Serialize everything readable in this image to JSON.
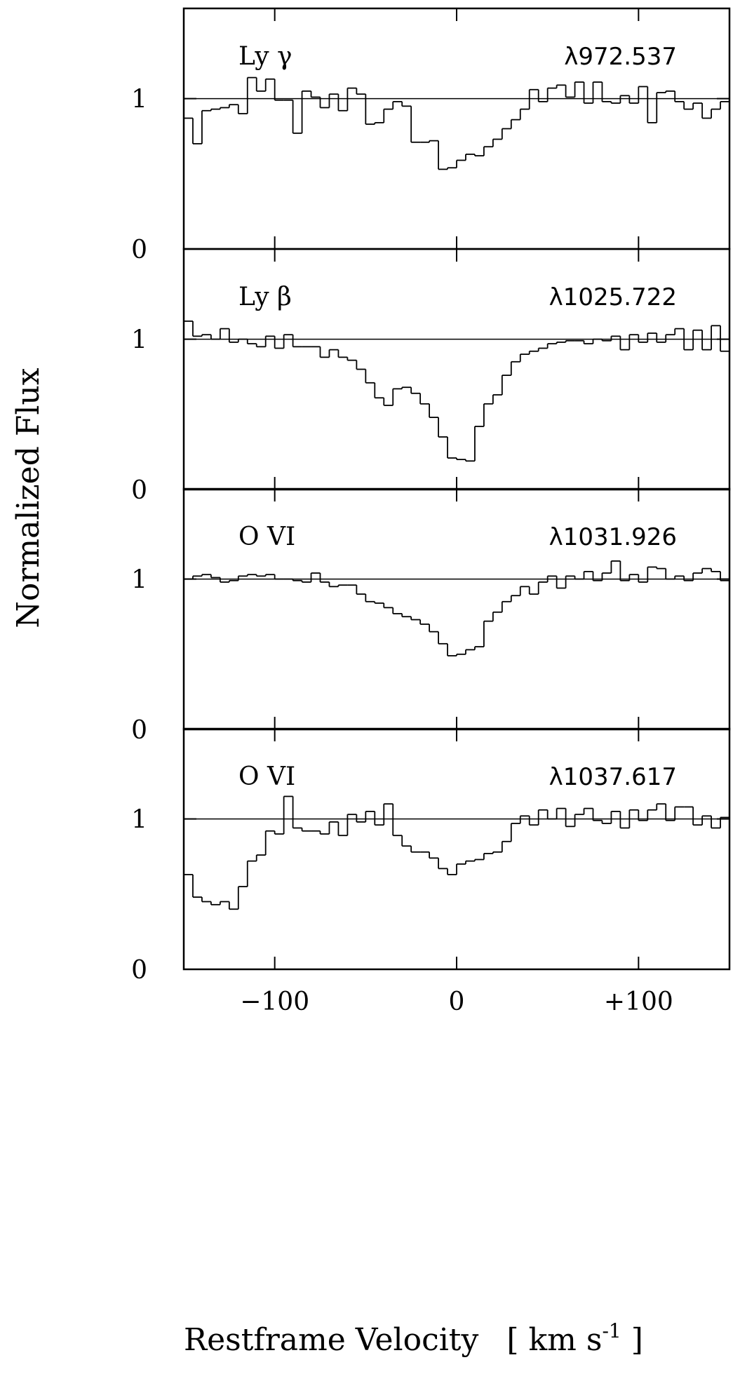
{
  "chart_data": [
    {
      "type": "step",
      "title": "Ly γ",
      "subtitle": "λ972.537",
      "x": [
        -150,
        -145,
        -140,
        -135,
        -130,
        -125,
        -120,
        -115,
        -110,
        -105,
        -100,
        -95,
        -90,
        -85,
        -80,
        -75,
        -70,
        -65,
        -60,
        -55,
        -50,
        -45,
        -40,
        -35,
        -30,
        -25,
        -20,
        -15,
        -10,
        -5,
        0,
        5,
        10,
        15,
        20,
        25,
        30,
        35,
        40,
        45,
        50,
        55,
        60,
        65,
        70,
        75,
        80,
        85,
        90,
        95,
        100,
        105,
        110,
        115,
        120,
        125,
        130,
        135,
        140,
        145
      ],
      "values": [
        0.87,
        0.7,
        0.92,
        0.93,
        0.94,
        0.96,
        0.9,
        1.14,
        1.05,
        1.13,
        0.99,
        0.99,
        0.77,
        1.05,
        1.01,
        0.94,
        1.03,
        0.92,
        1.07,
        1.03,
        0.83,
        0.84,
        0.93,
        0.98,
        0.95,
        0.71,
        0.71,
        0.72,
        0.53,
        0.54,
        0.59,
        0.63,
        0.62,
        0.68,
        0.73,
        0.8,
        0.86,
        0.93,
        1.06,
        0.98,
        1.07,
        1.09,
        1.01,
        1.11,
        0.97,
        1.11,
        0.98,
        0.97,
        1.02,
        0.97,
        1.08,
        0.84,
        1.04,
        1.05,
        0.98,
        0.93,
        0.97,
        0.87,
        0.93,
        0.98
      ],
      "color": "#000000",
      "reference_line": 1,
      "xlim": [
        -150,
        150
      ],
      "xticks": [
        -100,
        0,
        100
      ],
      "ylim": [
        0,
        1.6
      ],
      "yticks": [
        0,
        1
      ]
    },
    {
      "type": "step",
      "title": "Ly β",
      "subtitle": "λ1025.722",
      "x": [
        -150,
        -145,
        -140,
        -135,
        -130,
        -125,
        -120,
        -115,
        -110,
        -105,
        -100,
        -95,
        -90,
        -85,
        -80,
        -75,
        -70,
        -65,
        -60,
        -55,
        -50,
        -45,
        -40,
        -35,
        -30,
        -25,
        -20,
        -15,
        -10,
        -5,
        0,
        5,
        10,
        15,
        20,
        25,
        30,
        35,
        40,
        45,
        50,
        55,
        60,
        65,
        70,
        75,
        80,
        85,
        90,
        95,
        100,
        105,
        110,
        115,
        120,
        125,
        130,
        135,
        140,
        145
      ],
      "values": [
        1.12,
        1.02,
        1.03,
        1.0,
        1.07,
        0.98,
        1.0,
        0.97,
        0.95,
        1.02,
        0.94,
        1.03,
        0.95,
        0.95,
        0.95,
        0.88,
        0.93,
        0.88,
        0.86,
        0.8,
        0.71,
        0.61,
        0.56,
        0.67,
        0.68,
        0.64,
        0.57,
        0.48,
        0.35,
        0.21,
        0.2,
        0.19,
        0.42,
        0.57,
        0.63,
        0.76,
        0.85,
        0.9,
        0.92,
        0.94,
        0.97,
        0.98,
        0.99,
        0.99,
        0.97,
        1.0,
        0.99,
        1.02,
        0.93,
        1.03,
        0.98,
        1.04,
        0.98,
        1.03,
        1.07,
        0.93,
        1.06,
        0.93,
        1.09,
        0.92
      ],
      "color": "#000000",
      "reference_line": 1,
      "xlim": [
        -150,
        150
      ],
      "xticks": [
        -100,
        0,
        100
      ],
      "ylim": [
        0,
        1.6
      ],
      "yticks": [
        0,
        1
      ]
    },
    {
      "type": "step",
      "title": "O  VI",
      "subtitle": "λ1031.926",
      "x": [
        -150,
        -145,
        -140,
        -135,
        -130,
        -125,
        -120,
        -115,
        -110,
        -105,
        -100,
        -95,
        -90,
        -85,
        -80,
        -75,
        -70,
        -65,
        -60,
        -55,
        -50,
        -45,
        -40,
        -35,
        -30,
        -25,
        -20,
        -15,
        -10,
        -5,
        0,
        5,
        10,
        15,
        20,
        25,
        30,
        35,
        40,
        45,
        50,
        55,
        60,
        65,
        70,
        75,
        80,
        85,
        90,
        95,
        100,
        105,
        110,
        115,
        120,
        125,
        130,
        135,
        140,
        145
      ],
      "values": [
        1.0,
        1.02,
        1.03,
        1.01,
        0.98,
        0.99,
        1.02,
        1.03,
        1.02,
        1.03,
        1.0,
        1.0,
        0.99,
        0.98,
        1.04,
        0.98,
        0.95,
        0.96,
        0.96,
        0.9,
        0.85,
        0.84,
        0.81,
        0.77,
        0.75,
        0.73,
        0.7,
        0.65,
        0.57,
        0.49,
        0.5,
        0.53,
        0.55,
        0.72,
        0.78,
        0.85,
        0.89,
        0.95,
        0.9,
        0.98,
        1.02,
        0.94,
        1.02,
        1.0,
        1.05,
        0.99,
        1.04,
        1.12,
        0.99,
        1.03,
        0.98,
        1.08,
        1.07,
        1.0,
        1.02,
        0.99,
        1.04,
        1.07,
        1.05,
        0.99
      ],
      "color": "#000000",
      "reference_line": 1,
      "xlim": [
        -150,
        150
      ],
      "xticks": [
        -100,
        0,
        100
      ],
      "ylim": [
        0,
        1.6
      ],
      "yticks": [
        0,
        1
      ]
    },
    {
      "type": "step",
      "title": "O  VI",
      "subtitle": "λ1037.617",
      "x": [
        -150,
        -145,
        -140,
        -135,
        -130,
        -125,
        -120,
        -115,
        -110,
        -105,
        -100,
        -95,
        -90,
        -85,
        -80,
        -75,
        -70,
        -65,
        -60,
        -55,
        -50,
        -45,
        -40,
        -35,
        -30,
        -25,
        -20,
        -15,
        -10,
        -5,
        0,
        5,
        10,
        15,
        20,
        25,
        30,
        35,
        40,
        45,
        50,
        55,
        60,
        65,
        70,
        75,
        80,
        85,
        90,
        95,
        100,
        105,
        110,
        115,
        120,
        125,
        130,
        135,
        140,
        145
      ],
      "values": [
        0.63,
        0.48,
        0.45,
        0.43,
        0.45,
        0.4,
        0.55,
        0.72,
        0.76,
        0.92,
        0.9,
        1.15,
        0.94,
        0.92,
        0.92,
        0.9,
        0.98,
        0.89,
        1.03,
        0.98,
        1.05,
        0.96,
        1.1,
        0.89,
        0.82,
        0.78,
        0.78,
        0.74,
        0.67,
        0.63,
        0.7,
        0.72,
        0.73,
        0.77,
        0.78,
        0.85,
        0.97,
        1.02,
        0.96,
        1.06,
        1.0,
        1.07,
        0.95,
        1.03,
        1.07,
        0.99,
        0.97,
        1.05,
        0.94,
        1.06,
        0.99,
        1.06,
        1.1,
        0.99,
        1.08,
        1.08,
        0.96,
        1.02,
        0.94,
        1.01
      ],
      "color": "#000000",
      "reference_line": 1,
      "xlim": [
        -150,
        150
      ],
      "xticks": [
        {
          "value": -100,
          "label": "−100"
        },
        0,
        {
          "value": 100,
          "label": "+100"
        }
      ],
      "ylim": [
        0,
        1.6
      ],
      "yticks": [
        0,
        1
      ],
      "xlabel": "Restframe Velocity",
      "xunit": "[ km  s",
      "xunit_exp": "-1",
      "xunit_close": "]",
      "ylabel": "Normalized Flux"
    }
  ]
}
